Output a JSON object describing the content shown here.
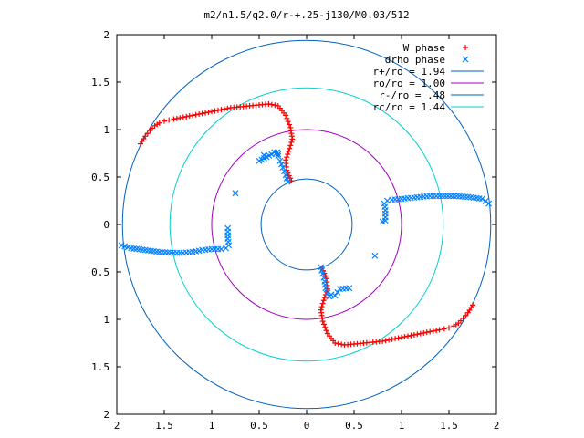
{
  "chart_data": {
    "type": "scatter",
    "title": "m2/n1.5/q2.0/r-+.25-j130/M0.03/512",
    "xlim": [
      -2,
      2
    ],
    "ylim": [
      -2,
      2
    ],
    "x_ticks": [
      "2",
      "1.5",
      "1",
      "0.5",
      "0",
      "0.5",
      "1",
      "1.5",
      "2"
    ],
    "y_ticks": [
      "2",
      "1.5",
      "1",
      "0.5",
      "0",
      "0.5",
      "1",
      "1.5",
      "2"
    ],
    "tick_values": [
      -2,
      -1.5,
      -1,
      -0.5,
      0,
      0.5,
      1,
      1.5,
      2
    ],
    "legend_position": "top-right",
    "legend": [
      {
        "label": "W phase",
        "kind": "point",
        "marker": "+",
        "color": "#ff0000"
      },
      {
        "label": "drho phase",
        "kind": "point",
        "marker": "x",
        "color": "#0080ff"
      },
      {
        "label": "r+/ro = 1.94",
        "kind": "line",
        "color": "#0060c0"
      },
      {
        "label": "ro/ro = 1.00",
        "kind": "line",
        "color": "#a000c0"
      },
      {
        "label": "r-/ro = .48",
        "kind": "line",
        "color": "#0060c0"
      },
      {
        "label": "rc/ro = 1.44",
        "kind": "line",
        "color": "#00d0d0"
      }
    ],
    "circles": [
      {
        "name": "r+",
        "radius": 1.94,
        "color": "#0060c0"
      },
      {
        "name": "ro",
        "radius": 1.0,
        "color": "#a000c0"
      },
      {
        "name": "r-",
        "radius": 0.48,
        "color": "#0060c0"
      },
      {
        "name": "rc",
        "radius": 1.44,
        "color": "#00d0d0"
      }
    ],
    "series": [
      {
        "name": "W phase",
        "color": "#ff0000",
        "marker": "+",
        "x": [
          -1.75,
          -1.7,
          -1.65,
          -1.6,
          -1.55,
          -1.5,
          -1.45,
          -1.4,
          -1.3,
          -1.2,
          -1.1,
          -1.0,
          -0.9,
          -0.8,
          -0.7,
          -0.6,
          -0.5,
          -0.4,
          -0.3,
          -0.22,
          -0.17,
          -0.15,
          -0.18,
          -0.22,
          -0.21,
          -0.16,
          1.75,
          1.7,
          1.65,
          1.6,
          1.55,
          1.5,
          1.45,
          1.4,
          1.3,
          1.2,
          1.1,
          1.0,
          0.9,
          0.8,
          0.7,
          0.6,
          0.5,
          0.4,
          0.3,
          0.22,
          0.17,
          0.15,
          0.18,
          0.22,
          0.21,
          0.16
        ],
        "y": [
          0.85,
          0.93,
          0.99,
          1.04,
          1.07,
          1.09,
          1.1,
          1.11,
          1.13,
          1.15,
          1.17,
          1.19,
          1.21,
          1.23,
          1.24,
          1.25,
          1.26,
          1.27,
          1.25,
          1.15,
          1.02,
          0.9,
          0.8,
          0.68,
          0.57,
          0.46,
          -0.85,
          -0.93,
          -0.99,
          -1.04,
          -1.07,
          -1.09,
          -1.1,
          -1.11,
          -1.13,
          -1.15,
          -1.17,
          -1.19,
          -1.21,
          -1.23,
          -1.24,
          -1.25,
          -1.26,
          -1.27,
          -1.25,
          -1.15,
          -1.02,
          -0.9,
          -0.8,
          -0.68,
          -0.57,
          -0.46
        ]
      },
      {
        "name": "drho phase",
        "color": "#0080ff",
        "marker": "x",
        "x": [
          -1.95,
          -1.85,
          -1.7,
          -1.55,
          -1.4,
          -1.3,
          -1.2,
          -1.1,
          -1.0,
          -0.9,
          -0.85,
          -0.82,
          -0.83,
          -0.83,
          -0.2,
          -0.22,
          -0.25,
          -0.28,
          -0.3,
          -0.31,
          -0.3,
          -0.32,
          -0.34,
          -0.37,
          -0.5,
          -0.75,
          -0.45,
          1.92,
          1.85,
          1.7,
          1.55,
          1.4,
          1.3,
          1.2,
          1.1,
          1.0,
          0.9,
          0.85,
          0.82,
          0.83,
          0.83,
          0.15,
          0.17,
          0.19,
          0.2,
          0.22,
          0.24,
          0.26,
          0.3,
          0.35,
          0.45,
          0.72,
          0.8
        ],
        "y": [
          -0.22,
          -0.25,
          -0.27,
          -0.29,
          -0.3,
          -0.3,
          -0.29,
          -0.27,
          -0.26,
          -0.26,
          -0.25,
          -0.22,
          -0.15,
          -0.04,
          0.45,
          0.52,
          0.6,
          0.67,
          0.72,
          0.76,
          0.74,
          0.75,
          0.76,
          0.74,
          0.67,
          0.33,
          0.73,
          0.22,
          0.27,
          0.29,
          0.3,
          0.3,
          0.3,
          0.29,
          0.28,
          0.27,
          0.26,
          0.25,
          0.22,
          0.15,
          0.04,
          -0.45,
          -0.52,
          -0.6,
          -0.67,
          -0.72,
          -0.76,
          -0.74,
          -0.75,
          -0.68,
          -0.67,
          -0.33,
          0.03
        ]
      }
    ]
  }
}
